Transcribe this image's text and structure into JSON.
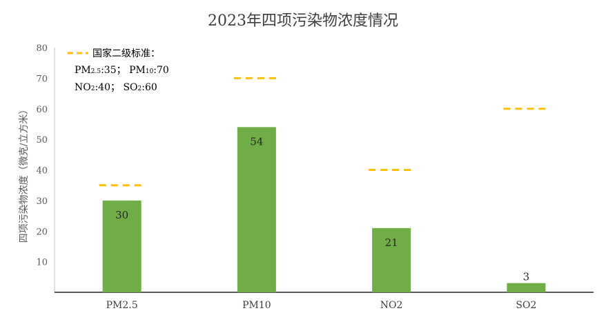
{
  "chart_data": {
    "type": "bar",
    "title": "2023年四项污染物浓度情况",
    "xlabel": "",
    "ylabel": "四项污染物浓度（微克/立方米）",
    "categories": [
      "PM2.5",
      "PM10",
      "NO2",
      "SO2"
    ],
    "values": [
      30,
      54,
      21,
      3
    ],
    "data_labels": [
      "30",
      "54",
      "21",
      "3"
    ],
    "ylim": [
      0,
      80
    ],
    "yticks": [
      10,
      20,
      30,
      40,
      50,
      60,
      70,
      80
    ],
    "grid": false,
    "bar_color": "#70ad47",
    "standards": {
      "name": "国家二级标准：",
      "values": [
        35,
        70,
        40,
        60
      ],
      "color": "#ffc000",
      "line_style": "dashed",
      "legend_lines": [
        [
          {
            "t": "PM"
          },
          {
            "t": "2.5",
            "sub": true
          },
          {
            "t": ":35；  PM"
          },
          {
            "t": "10",
            "sub": true
          },
          {
            "t": ":70"
          }
        ],
        [
          {
            "t": "NO"
          },
          {
            "t": "2",
            "sub": true
          },
          {
            "t": ":40；    SO"
          },
          {
            "t": "2",
            "sub": true
          },
          {
            "t": ":60"
          }
        ]
      ],
      "legend_placement": "top-left"
    }
  }
}
